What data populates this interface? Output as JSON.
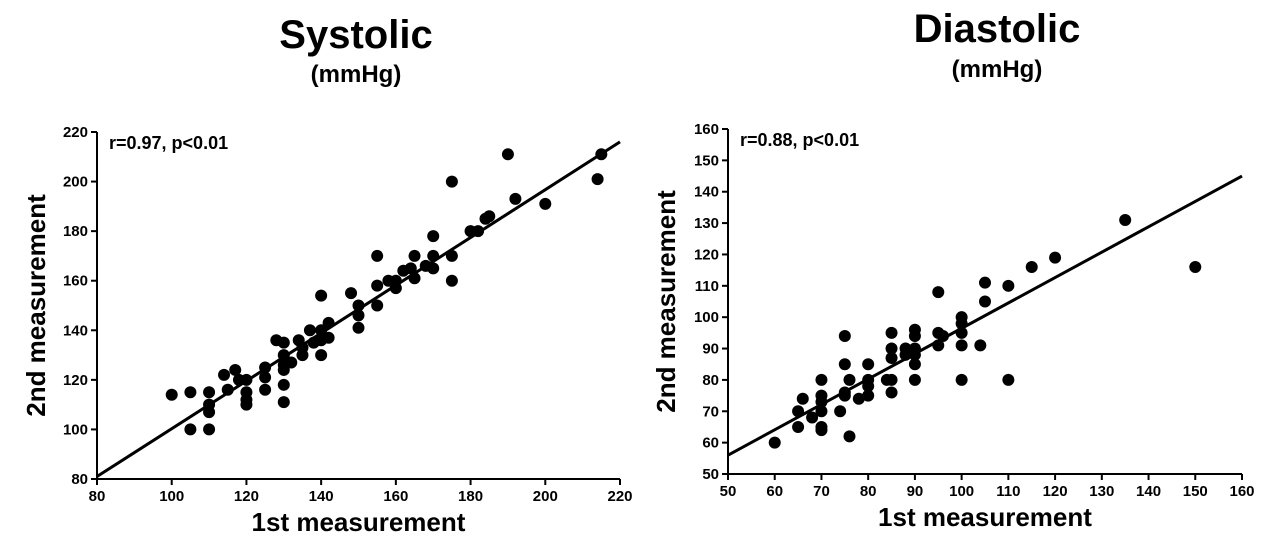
{
  "chart_data": [
    {
      "type": "scatter",
      "title": "Systolic",
      "subtitle": "(mmHg)",
      "annotation": "r=0.97, p<0.01",
      "xlabel": "1st measurement",
      "ylabel": "2nd measurement",
      "color": "#000000",
      "xlim": [
        80,
        220
      ],
      "ylim": [
        80,
        220
      ],
      "xticks": [
        80,
        100,
        120,
        140,
        160,
        180,
        200,
        220
      ],
      "yticks": [
        80,
        100,
        120,
        140,
        160,
        180,
        200,
        220
      ],
      "x": [
        100,
        105,
        105,
        110,
        110,
        110,
        110,
        114,
        115,
        117,
        118,
        120,
        120,
        120,
        120,
        125,
        125,
        125,
        128,
        130,
        130,
        130,
        130,
        130,
        130,
        132,
        134,
        135,
        135,
        137,
        138,
        140,
        140,
        140,
        140,
        142,
        142,
        148,
        150,
        150,
        150,
        155,
        155,
        155,
        158,
        160,
        160,
        162,
        164,
        165,
        165,
        168,
        170,
        170,
        170,
        175,
        175,
        175,
        180,
        182,
        184,
        185,
        190,
        192,
        200,
        214,
        215
      ],
      "y": [
        114,
        115,
        100,
        115,
        110,
        107,
        100,
        122,
        116,
        124,
        120,
        120,
        115,
        112,
        110,
        125,
        121,
        116,
        136,
        135,
        130,
        126,
        124,
        118,
        111,
        127,
        136,
        133,
        130,
        140,
        135,
        140,
        136,
        130,
        154,
        143,
        137,
        155,
        150,
        146,
        141,
        170,
        158,
        150,
        160,
        157,
        160,
        164,
        165,
        170,
        161,
        166,
        178,
        170,
        165,
        200,
        170,
        160,
        180,
        180,
        185,
        186,
        211,
        193,
        191,
        201,
        211
      ],
      "trend_line": {
        "x": [
          80,
          220
        ],
        "y": [
          81,
          216
        ]
      }
    },
    {
      "type": "scatter",
      "title": "Diastolic",
      "subtitle": "(mmHg)",
      "annotation": "r=0.88, p<0.01",
      "xlabel": "1st measurement",
      "ylabel": "2nd measurement",
      "color": "#000000",
      "xlim": [
        50,
        160
      ],
      "ylim": [
        50,
        160
      ],
      "xticks": [
        50,
        60,
        70,
        80,
        90,
        100,
        110,
        120,
        130,
        140,
        150,
        160
      ],
      "yticks": [
        50,
        60,
        70,
        80,
        90,
        100,
        110,
        120,
        130,
        140,
        150,
        160
      ],
      "x": [
        60,
        65,
        65,
        66,
        68,
        70,
        70,
        70,
        70,
        70,
        70,
        74,
        75,
        75,
        75,
        75,
        76,
        76,
        78,
        80,
        80,
        80,
        80,
        84,
        85,
        85,
        85,
        85,
        85,
        88,
        88,
        90,
        90,
        90,
        90,
        90,
        90,
        95,
        95,
        95,
        96,
        100,
        100,
        100,
        100,
        100,
        104,
        105,
        105,
        110,
        110,
        115,
        120,
        135,
        150
      ],
      "y": [
        60,
        70,
        65,
        74,
        68,
        80,
        75,
        73,
        70,
        65,
        64,
        70,
        94,
        85,
        76,
        75,
        62,
        80,
        74,
        85,
        80,
        78,
        75,
        80,
        95,
        90,
        87,
        80,
        76,
        90,
        88,
        96,
        94,
        90,
        88,
        85,
        80,
        108,
        95,
        91,
        94,
        100,
        98,
        95,
        91,
        80,
        91,
        111,
        105,
        110,
        80,
        116,
        119,
        131,
        116
      ],
      "trend_line": {
        "x": [
          50,
          160
        ],
        "y": [
          56,
          145
        ]
      }
    }
  ]
}
